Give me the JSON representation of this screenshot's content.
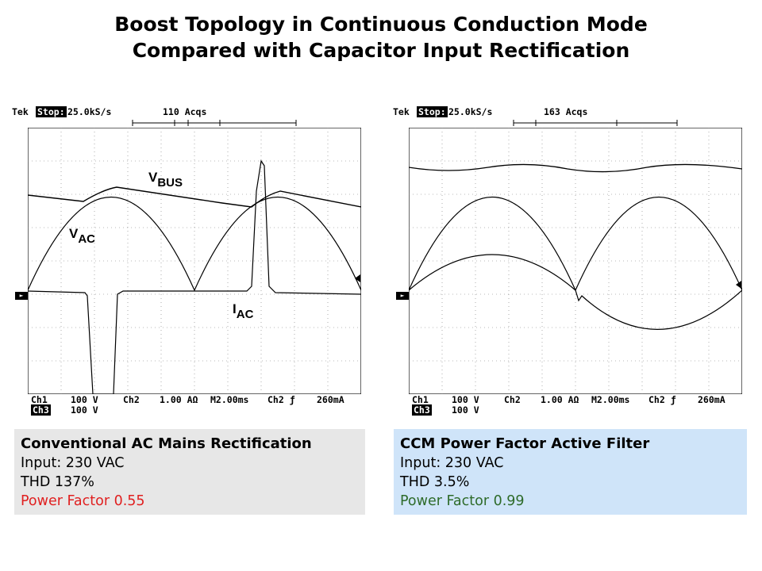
{
  "title": {
    "line1": "Boost Topology in Continuous Conduction Mode",
    "line2": "Compared with Capacitor Input Rectification"
  },
  "left_scope": {
    "tek": "Tek",
    "stop": "Stop:",
    "rate": "25.0kS/s",
    "acqs": "110 Acqs",
    "ch1": "Ch1",
    "ch1_scale": "100 V",
    "ch2": "Ch2",
    "ch2_scale": "1.00 AΩ",
    "timebase": "M2.00ms",
    "trig": "Ch2 ƒ",
    "trig_level": "260mA",
    "ch3": "Ch3",
    "ch3_scale": "100 V",
    "labels": {
      "vbus_main": "V",
      "vbus_sub": "BUS",
      "vac_main": "V",
      "vac_sub": "AC",
      "iac_main": "I",
      "iac_sub": "AC"
    }
  },
  "right_scope": {
    "tek": "Tek",
    "stop": "Stop:",
    "rate": "25.0kS/s",
    "acqs": "163 Acqs",
    "ch1": "Ch1",
    "ch1_scale": "100 V",
    "ch2": "Ch2",
    "ch2_scale": "1.00 AΩ",
    "timebase": "M2.00ms",
    "trig": "Ch2 ƒ",
    "trig_level": "260mA",
    "ch3": "Ch3",
    "ch3_scale": "100 V"
  },
  "left_box": {
    "heading": "Conventional AC Mains Rectification",
    "input": "Input: 230 VAC",
    "thd": "THD 137%",
    "pf": "Power Factor 0.55",
    "pf_color": "#e02020"
  },
  "right_box": {
    "heading": "CCM Power Factor Active Filter",
    "input": "Input: 230 VAC",
    "thd": "THD 3.5%",
    "pf": "Power Factor 0.99",
    "pf_color": "#2e6b2a"
  },
  "colors": {
    "left_box_bg": "#e7e7e7",
    "right_box_bg": "#cfe4f9"
  }
}
